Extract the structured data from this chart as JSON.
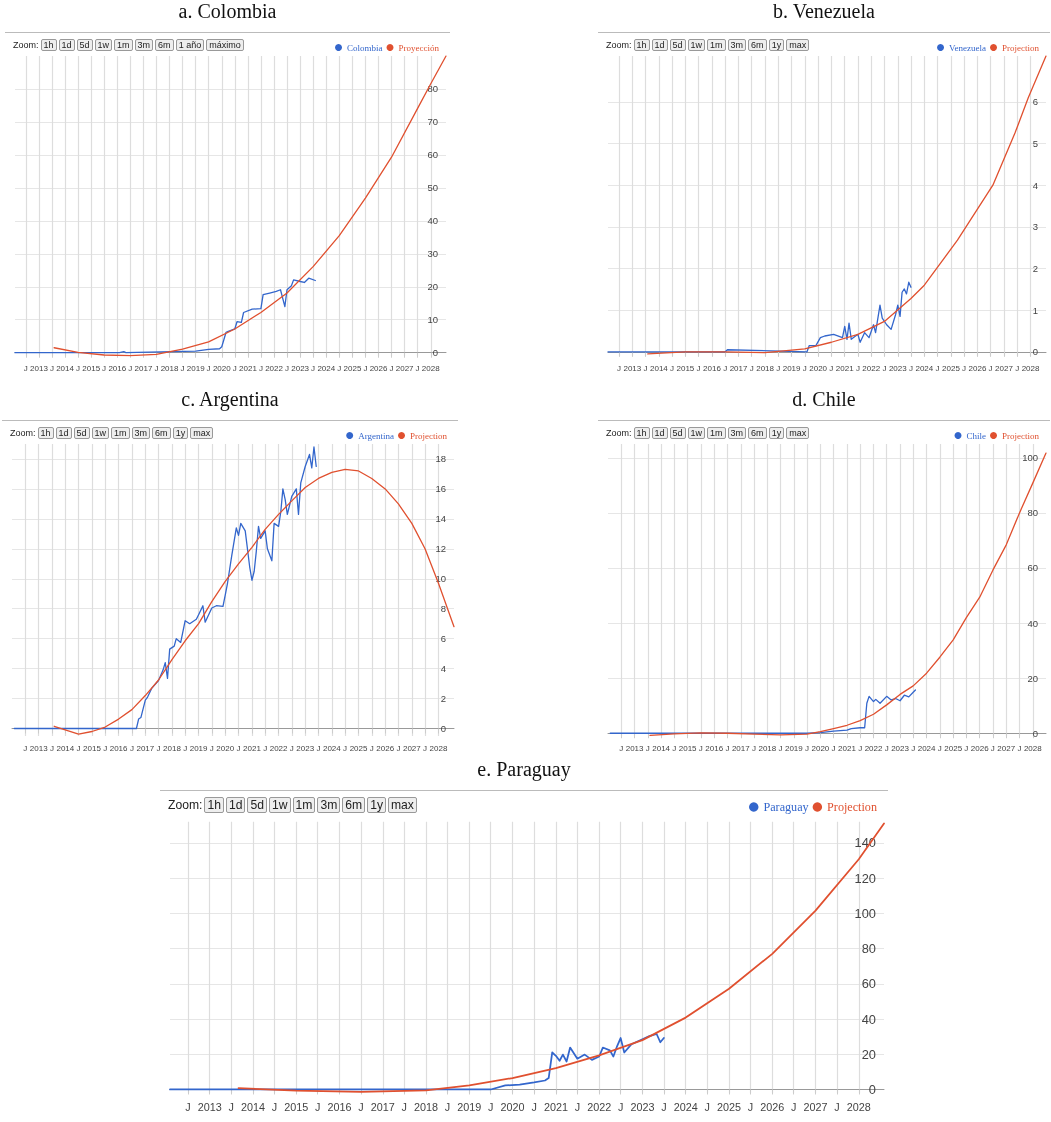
{
  "chart_data": [
    {
      "type": "line",
      "title": "a. Colombia",
      "annotations": [
        "Zoom:",
        "1h",
        "1d",
        "5d",
        "1w",
        "1m",
        "3m",
        "6m",
        "1 año",
        "máximo"
      ],
      "legend": "top right",
      "grid": true,
      "marker": "none",
      "line_style": "solid",
      "xlim": [
        "2012-02",
        "2028-08"
      ],
      "ylim": [
        -1,
        90
      ],
      "yticks": [
        0,
        10,
        20,
        30,
        40,
        50,
        60,
        70,
        80
      ],
      "xticks": [
        {
          "value": "2012-07",
          "label": "J"
        },
        {
          "value": "2013",
          "label": "2013"
        },
        {
          "value": "2013-07",
          "label": "J"
        },
        {
          "value": "2014",
          "label": "2014"
        },
        {
          "value": "2014-07",
          "label": "J"
        },
        {
          "value": "2015",
          "label": "2015"
        },
        {
          "value": "2015-07",
          "label": "J"
        },
        {
          "value": "2016",
          "label": "2016"
        },
        {
          "value": "2016-07",
          "label": "J"
        },
        {
          "value": "2017",
          "label": "2017"
        },
        {
          "value": "2017-07",
          "label": "J"
        },
        {
          "value": "2018",
          "label": "2018"
        },
        {
          "value": "2018-07",
          "label": "J"
        },
        {
          "value": "2019",
          "label": "2019"
        },
        {
          "value": "2019-07",
          "label": "J"
        },
        {
          "value": "2020",
          "label": "2020"
        },
        {
          "value": "2020-07",
          "label": "J"
        },
        {
          "value": "2021",
          "label": "2021"
        },
        {
          "value": "2021-07",
          "label": "J"
        },
        {
          "value": "2022",
          "label": "2022"
        },
        {
          "value": "2022-07",
          "label": "J"
        },
        {
          "value": "2023",
          "label": "2023"
        },
        {
          "value": "2023-07",
          "label": "J"
        },
        {
          "value": "2024",
          "label": "2024"
        },
        {
          "value": "2024-07",
          "label": "J"
        },
        {
          "value": "2025",
          "label": "2025"
        },
        {
          "value": "2025-07",
          "label": "J"
        },
        {
          "value": "2026",
          "label": "2026"
        },
        {
          "value": "2026-07",
          "label": "J"
        },
        {
          "value": "2027",
          "label": "2027"
        },
        {
          "value": "2027-07",
          "label": "J"
        },
        {
          "value": "2028",
          "label": "2028"
        }
      ],
      "series": [
        {
          "name": "Colombia",
          "color": "#3366cc",
          "x": [
            "2012-02",
            "2016-02",
            "2016-04",
            "2016-05",
            "2019-01",
            "2019-07",
            "2019-12",
            "2020-01",
            "2020-03",
            "2020-04",
            "2020-07",
            "2020-08",
            "2020-10",
            "2020-11",
            "2021-03",
            "2021-07",
            "2021-08",
            "2021-11",
            "2022-02",
            "2022-04",
            "2022-06",
            "2022-07",
            "2022-09",
            "2022-10",
            "2023-01",
            "2023-03",
            "2023-05",
            "2023-08"
          ],
          "values": [
            0,
            0,
            0.3,
            0,
            0.5,
            1,
            1.2,
            1.8,
            6.2,
            6.5,
            7.2,
            9.4,
            9.2,
            12.2,
            13.2,
            13.4,
            17.6,
            18.1,
            18.6,
            19.1,
            14,
            19.1,
            20.3,
            22.1,
            21.6,
            21.3,
            22.6,
            21.9
          ]
        },
        {
          "name": "Proyección",
          "color": "#e0502f",
          "x": [
            "2013-08",
            "2014-07",
            "2015-07",
            "2016-07",
            "2017-07",
            "2018-07",
            "2019-07",
            "2020-07",
            "2021-07",
            "2022-07",
            "2023-07",
            "2024-07",
            "2025-07",
            "2026-07",
            "2027-07",
            "2028-01",
            "2028-08"
          ],
          "values": [
            1.5,
            0.1,
            -0.7,
            -0.9,
            -0.5,
            1.1,
            3.3,
            7.2,
            12.2,
            18.1,
            26.1,
            35.5,
            46.9,
            59.3,
            74.1,
            81.6,
            90
          ]
        }
      ]
    },
    {
      "type": "line",
      "title": "b. Venezuela",
      "annotations": [
        "Zoom:",
        "1h",
        "1d",
        "5d",
        "1w",
        "1m",
        "3m",
        "6m",
        "1y",
        "max"
      ],
      "legend": "top right",
      "grid": true,
      "marker": "none",
      "line_style": "solid",
      "xlim": [
        "2012-02",
        "2028-08"
      ],
      "ylim": [
        -0.1,
        7.1
      ],
      "yticks": [
        0,
        1,
        2,
        3,
        4,
        5,
        6
      ],
      "xticks": [
        {
          "value": "2012-07",
          "label": "J"
        },
        {
          "value": "2013",
          "label": "2013"
        },
        {
          "value": "2013-07",
          "label": "J"
        },
        {
          "value": "2014",
          "label": "2014"
        },
        {
          "value": "2014-07",
          "label": "J"
        },
        {
          "value": "2015",
          "label": "2015"
        },
        {
          "value": "2015-07",
          "label": "J"
        },
        {
          "value": "2016",
          "label": "2016"
        },
        {
          "value": "2016-07",
          "label": "J"
        },
        {
          "value": "2017",
          "label": "2017"
        },
        {
          "value": "2017-07",
          "label": "J"
        },
        {
          "value": "2018",
          "label": "2018"
        },
        {
          "value": "2018-07",
          "label": "J"
        },
        {
          "value": "2019",
          "label": "2019"
        },
        {
          "value": "2019-07",
          "label": "J"
        },
        {
          "value": "2020",
          "label": "2020"
        },
        {
          "value": "2020-07",
          "label": "J"
        },
        {
          "value": "2021",
          "label": "2021"
        },
        {
          "value": "2021-07",
          "label": "J"
        },
        {
          "value": "2022",
          "label": "2022"
        },
        {
          "value": "2022-07",
          "label": "J"
        },
        {
          "value": "2023",
          "label": "2023"
        },
        {
          "value": "2023-07",
          "label": "J"
        },
        {
          "value": "2024",
          "label": "2024"
        },
        {
          "value": "2024-07",
          "label": "J"
        },
        {
          "value": "2025",
          "label": "2025"
        },
        {
          "value": "2025-07",
          "label": "J"
        },
        {
          "value": "2026",
          "label": "2026"
        },
        {
          "value": "2026-07",
          "label": "J"
        },
        {
          "value": "2027",
          "label": "2027"
        },
        {
          "value": "2027-07",
          "label": "J"
        },
        {
          "value": "2028",
          "label": "2028"
        }
      ],
      "series": [
        {
          "name": "Venezuela",
          "color": "#3366cc",
          "x": [
            "2012-02",
            "2016-07",
            "2016-08",
            "2019-08",
            "2019-09",
            "2019-12",
            "2020-02",
            "2020-04",
            "2020-08",
            "2020-12",
            "2021-01",
            "2021-02",
            "2021-03",
            "2021-04",
            "2021-07",
            "2021-08",
            "2021-10",
            "2021-12",
            "2022-02",
            "2022-03",
            "2022-05",
            "2022-06",
            "2022-08",
            "2022-10",
            "2022-12",
            "2023-01",
            "2023-02",
            "2023-03",
            "2023-04",
            "2023-05",
            "2023-06",
            "2023-07"
          ],
          "values": [
            0,
            0,
            0.05,
            0,
            0.15,
            0.15,
            0.34,
            0.38,
            0.42,
            0.34,
            0.61,
            0.3,
            0.69,
            0.3,
            0.42,
            0.23,
            0.46,
            0.34,
            0.65,
            0.46,
            1.12,
            0.81,
            0.65,
            0.54,
            0.89,
            1.12,
            0.85,
            1.43,
            1.51,
            1.39,
            1.67,
            1.55
          ]
        },
        {
          "name": "Projection",
          "color": "#e0502f",
          "x": [
            "2013-08",
            "2015-01",
            "2016-07",
            "2018-01",
            "2019-07",
            "2020-07",
            "2021-07",
            "2022-07",
            "2023-07",
            "2024-01",
            "2025-04",
            "2026-08",
            "2027-06",
            "2027-12",
            "2028-08"
          ],
          "values": [
            -0.05,
            0,
            0,
            -0.02,
            0.07,
            0.23,
            0.42,
            0.73,
            1.28,
            1.6,
            2.68,
            4.0,
            5.25,
            6.1,
            7.1
          ]
        }
      ]
    },
    {
      "type": "line",
      "title": "c. Argentina",
      "annotations": [
        "Zoom:",
        "1h",
        "1d",
        "5d",
        "1w",
        "1m",
        "3m",
        "6m",
        "1y",
        "max"
      ],
      "legend": "top right",
      "grid": true,
      "marker": "none",
      "line_style": "solid",
      "xlim": [
        "2012-01",
        "2028-08"
      ],
      "ylim": [
        -0.5,
        19
      ],
      "yticks": [
        0,
        2,
        4,
        6,
        8,
        10,
        12,
        14,
        16,
        18
      ],
      "xticks": [
        {
          "value": "2012-07",
          "label": "J"
        },
        {
          "value": "2013",
          "label": "2013"
        },
        {
          "value": "2013-07",
          "label": "J"
        },
        {
          "value": "2014",
          "label": "2014"
        },
        {
          "value": "2014-07",
          "label": "J"
        },
        {
          "value": "2015",
          "label": "2015"
        },
        {
          "value": "2015-07",
          "label": "J"
        },
        {
          "value": "2016",
          "label": "2016"
        },
        {
          "value": "2016-07",
          "label": "J"
        },
        {
          "value": "2017",
          "label": "2017"
        },
        {
          "value": "2017-07",
          "label": "J"
        },
        {
          "value": "2018",
          "label": "2018"
        },
        {
          "value": "2018-07",
          "label": "J"
        },
        {
          "value": "2019",
          "label": "2019"
        },
        {
          "value": "2019-07",
          "label": "J"
        },
        {
          "value": "2020",
          "label": "2020"
        },
        {
          "value": "2020-07",
          "label": "J"
        },
        {
          "value": "2021",
          "label": "2021"
        },
        {
          "value": "2021-07",
          "label": "J"
        },
        {
          "value": "2022",
          "label": "2022"
        },
        {
          "value": "2022-07",
          "label": "J"
        },
        {
          "value": "2023",
          "label": "2023"
        },
        {
          "value": "2023-07",
          "label": "J"
        },
        {
          "value": "2024",
          "label": "2024"
        },
        {
          "value": "2024-07",
          "label": "J"
        },
        {
          "value": "2025",
          "label": "2025"
        },
        {
          "value": "2025-07",
          "label": "J"
        },
        {
          "value": "2026",
          "label": "2026"
        },
        {
          "value": "2026-07",
          "label": "J"
        },
        {
          "value": "2027",
          "label": "2027"
        },
        {
          "value": "2027-07",
          "label": "J"
        },
        {
          "value": "2028",
          "label": "2028"
        }
      ],
      "series": [
        {
          "name": "Argentina",
          "color": "#3366cc",
          "x": [
            "2012-02",
            "2016-09",
            "2016-10",
            "2016-11",
            "2017-01",
            "2017-02",
            "2017-04",
            "2017-07",
            "2017-09",
            "2017-10",
            "2017-11",
            "2017-12",
            "2018-02",
            "2018-03",
            "2018-05",
            "2018-07",
            "2018-09",
            "2018-12",
            "2019-01",
            "2019-03",
            "2019-04",
            "2019-07",
            "2019-09",
            "2019-12",
            "2020-01",
            "2020-02",
            "2020-04",
            "2020-06",
            "2020-07",
            "2020-08",
            "2020-10",
            "2020-12",
            "2021-01",
            "2021-02",
            "2021-03",
            "2021-04",
            "2021-05",
            "2021-07",
            "2021-08",
            "2021-10",
            "2021-11",
            "2022-01",
            "2022-02",
            "2022-03",
            "2022-04",
            "2022-05",
            "2022-07",
            "2022-09",
            "2022-10",
            "2022-11",
            "2023-01",
            "2023-03",
            "2023-04",
            "2023-05",
            "2023-06"
          ],
          "values": [
            0,
            0,
            0.63,
            0.73,
            1.9,
            2.1,
            2.7,
            3.2,
            3.9,
            4.4,
            3.35,
            5.3,
            5.5,
            6.0,
            5.75,
            7.2,
            7.0,
            7.3,
            7.6,
            8.2,
            7.1,
            8.05,
            8.2,
            8.15,
            8.9,
            9.7,
            11.6,
            13.4,
            12.9,
            13.7,
            13.2,
            10.8,
            9.9,
            10.5,
            11.8,
            13.5,
            12.7,
            13.2,
            12.0,
            11.2,
            13.7,
            13.5,
            14.5,
            16.0,
            15.3,
            14.3,
            15.5,
            16.0,
            14.3,
            16.4,
            17.5,
            18.3,
            17.4,
            18.8,
            17.5
          ]
        },
        {
          "name": "Projection",
          "color": "#e0502f",
          "x": [
            "2013-08",
            "2014-07",
            "2015-01",
            "2015-07",
            "2016-01",
            "2016-07",
            "2017-01",
            "2017-07",
            "2018-01",
            "2018-07",
            "2019-01",
            "2019-07",
            "2020-01",
            "2020-07",
            "2021-01",
            "2021-07",
            "2022-01",
            "2022-07",
            "2023-01",
            "2023-07",
            "2024-01",
            "2024-07",
            "2025-01",
            "2025-07",
            "2026-01",
            "2026-07",
            "2027-01",
            "2027-07",
            "2028-01",
            "2028-08"
          ],
          "values": [
            0.15,
            -0.38,
            -0.2,
            0.1,
            0.63,
            1.26,
            2.2,
            3.24,
            4.6,
            5.86,
            7.0,
            8.47,
            9.83,
            11.0,
            12.1,
            13.3,
            14.3,
            15.2,
            16.1,
            16.7,
            17.1,
            17.3,
            17.2,
            16.7,
            16.0,
            15.0,
            13.7,
            12.0,
            9.7,
            6.8
          ]
        }
      ]
    },
    {
      "type": "line",
      "title": "d. Chile",
      "annotations": [
        "Zoom:",
        "1h",
        "1d",
        "5d",
        "1w",
        "1m",
        "3m",
        "6m",
        "1y",
        "max"
      ],
      "legend": "top right",
      "grid": true,
      "marker": "none",
      "line_style": "solid",
      "xlim": [
        "2012-01",
        "2028-07"
      ],
      "ylim": [
        -1,
        105
      ],
      "yticks": [
        0,
        20,
        40,
        60,
        80,
        100
      ],
      "xticks": [
        {
          "value": "2012-07",
          "label": "J"
        },
        {
          "value": "2013",
          "label": "2013"
        },
        {
          "value": "2013-07",
          "label": "J"
        },
        {
          "value": "2014",
          "label": "2014"
        },
        {
          "value": "2014-07",
          "label": "J"
        },
        {
          "value": "2015",
          "label": "2015"
        },
        {
          "value": "2015-07",
          "label": "J"
        },
        {
          "value": "2016",
          "label": "2016"
        },
        {
          "value": "2016-07",
          "label": "J"
        },
        {
          "value": "2017",
          "label": "2017"
        },
        {
          "value": "2017-07",
          "label": "J"
        },
        {
          "value": "2018",
          "label": "2018"
        },
        {
          "value": "2018-07",
          "label": "J"
        },
        {
          "value": "2019",
          "label": "2019"
        },
        {
          "value": "2019-07",
          "label": "J"
        },
        {
          "value": "2020",
          "label": "2020"
        },
        {
          "value": "2020-07",
          "label": "J"
        },
        {
          "value": "2021",
          "label": "2021"
        },
        {
          "value": "2021-07",
          "label": "J"
        },
        {
          "value": "2022",
          "label": "2022"
        },
        {
          "value": "2022-07",
          "label": "J"
        },
        {
          "value": "2023",
          "label": "2023"
        },
        {
          "value": "2023-07",
          "label": "J"
        },
        {
          "value": "2024",
          "label": "2024"
        },
        {
          "value": "2024-07",
          "label": "J"
        },
        {
          "value": "2025",
          "label": "2025"
        },
        {
          "value": "2025-07",
          "label": "J"
        },
        {
          "value": "2026",
          "label": "2026"
        },
        {
          "value": "2026-07",
          "label": "J"
        },
        {
          "value": "2027",
          "label": "2027"
        },
        {
          "value": "2027-07",
          "label": "J"
        },
        {
          "value": "2028",
          "label": "2028"
        }
      ],
      "series": [
        {
          "name": "Chile",
          "color": "#3366cc",
          "x": [
            "2012-02",
            "2019-07",
            "2020-01",
            "2020-07",
            "2021-01",
            "2021-03",
            "2021-07",
            "2021-09",
            "2021-10",
            "2021-11",
            "2022-01",
            "2022-02",
            "2022-04",
            "2022-07",
            "2022-09",
            "2022-11",
            "2023-01",
            "2023-03",
            "2023-05",
            "2023-07",
            "2023-08"
          ],
          "values": [
            0,
            0,
            0.2,
            0.8,
            1.1,
            1.7,
            2,
            2,
            10.9,
            13.4,
            11.5,
            12.3,
            10.9,
            13.4,
            12.1,
            12.6,
            11.8,
            13.8,
            13.2,
            14.9,
            15.7
          ]
        },
        {
          "name": "Projection",
          "color": "#e0502f",
          "x": [
            "2013-08",
            "2014-07",
            "2015-07",
            "2016-07",
            "2017-07",
            "2018-07",
            "2019-07",
            "2020-01",
            "2020-07",
            "2021-01",
            "2021-07",
            "2022-01",
            "2022-07",
            "2023-01",
            "2023-07",
            "2024-01",
            "2024-07",
            "2025-01",
            "2025-07",
            "2026-01",
            "2026-07",
            "2027-01",
            "2027-07",
            "2028-01",
            "2028-07"
          ],
          "values": [
            -0.8,
            -0.2,
            0.1,
            0,
            -0.3,
            -0.6,
            -0.3,
            0.6,
            1.7,
            2.9,
            4.6,
            6.9,
            10.3,
            14.1,
            17.2,
            21.8,
            27.6,
            33.9,
            42,
            49.4,
            59.2,
            68.4,
            79.9,
            90.8,
            101.7
          ]
        }
      ]
    },
    {
      "type": "line",
      "title": "e. Paraguay",
      "annotations": [
        "Zoom:",
        "1h",
        "1d",
        "5d",
        "1w",
        "1m",
        "3m",
        "6m",
        "1y",
        "max"
      ],
      "legend": "top right",
      "grid": true,
      "marker": "none",
      "line_style": "solid",
      "xlim": [
        "2012-02",
        "2028-08"
      ],
      "ylim": [
        -2,
        152
      ],
      "yticks": [
        0,
        20,
        40,
        60,
        80,
        100,
        120,
        140
      ],
      "xticks": [
        {
          "value": "2012-07",
          "label": "J"
        },
        {
          "value": "2013",
          "label": "2013"
        },
        {
          "value": "2013-07",
          "label": "J"
        },
        {
          "value": "2014",
          "label": "2014"
        },
        {
          "value": "2014-07",
          "label": "J"
        },
        {
          "value": "2015",
          "label": "2015"
        },
        {
          "value": "2015-07",
          "label": "J"
        },
        {
          "value": "2016",
          "label": "2016"
        },
        {
          "value": "2016-07",
          "label": "J"
        },
        {
          "value": "2017",
          "label": "2017"
        },
        {
          "value": "2017-07",
          "label": "J"
        },
        {
          "value": "2018",
          "label": "2018"
        },
        {
          "value": "2018-07",
          "label": "J"
        },
        {
          "value": "2019",
          "label": "2019"
        },
        {
          "value": "2019-07",
          "label": "J"
        },
        {
          "value": "2020",
          "label": "2020"
        },
        {
          "value": "2020-07",
          "label": "J"
        },
        {
          "value": "2021",
          "label": "2021"
        },
        {
          "value": "2021-07",
          "label": "J"
        },
        {
          "value": "2022",
          "label": "2022"
        },
        {
          "value": "2022-07",
          "label": "J"
        },
        {
          "value": "2023",
          "label": "2023"
        },
        {
          "value": "2023-07",
          "label": "J"
        },
        {
          "value": "2024",
          "label": "2024"
        },
        {
          "value": "2024-07",
          "label": "J"
        },
        {
          "value": "2025",
          "label": "2025"
        },
        {
          "value": "2025-07",
          "label": "J"
        },
        {
          "value": "2026",
          "label": "2026"
        },
        {
          "value": "2026-07",
          "label": "J"
        },
        {
          "value": "2027",
          "label": "2027"
        },
        {
          "value": "2027-07",
          "label": "J"
        },
        {
          "value": "2028",
          "label": "2028"
        }
      ],
      "series": [
        {
          "name": "Paraguay",
          "color": "#3366cc",
          "x": [
            "2012-02",
            "2019-07",
            "2019-11",
            "2020-03",
            "2020-07",
            "2020-10",
            "2020-11",
            "2020-12",
            "2021-01",
            "2021-02",
            "2021-03",
            "2021-04",
            "2021-05",
            "2021-07",
            "2021-09",
            "2021-11",
            "2022-01",
            "2022-02",
            "2022-04",
            "2022-05",
            "2022-06",
            "2022-07",
            "2022-08",
            "2022-10",
            "2023-01",
            "2023-03",
            "2023-05",
            "2023-06",
            "2023-07"
          ],
          "values": [
            0,
            0,
            2.3,
            2.8,
            4,
            5.1,
            6.5,
            21,
            19.1,
            16.3,
            19.8,
            15.9,
            23.8,
            17.5,
            19.8,
            16.8,
            18.7,
            23.8,
            22.2,
            18.7,
            24.5,
            29.2,
            21,
            25.7,
            28.5,
            30.3,
            31.5,
            26.8,
            29.2
          ]
        },
        {
          "name": "Projection",
          "color": "#e0502f",
          "x": [
            "2013-09",
            "2015-01",
            "2016-07",
            "2018-01",
            "2019-01",
            "2020-01",
            "2021-01",
            "2022-01",
            "2023-01",
            "2024-01",
            "2025-01",
            "2026-01",
            "2027-01",
            "2028-01",
            "2028-08"
          ],
          "values": [
            0.7,
            -0.7,
            -1.4,
            -0.5,
            2.3,
            6.5,
            12.1,
            19.4,
            28,
            40.8,
            57.2,
            77,
            101.5,
            130.7,
            151
          ]
        }
      ]
    }
  ]
}
